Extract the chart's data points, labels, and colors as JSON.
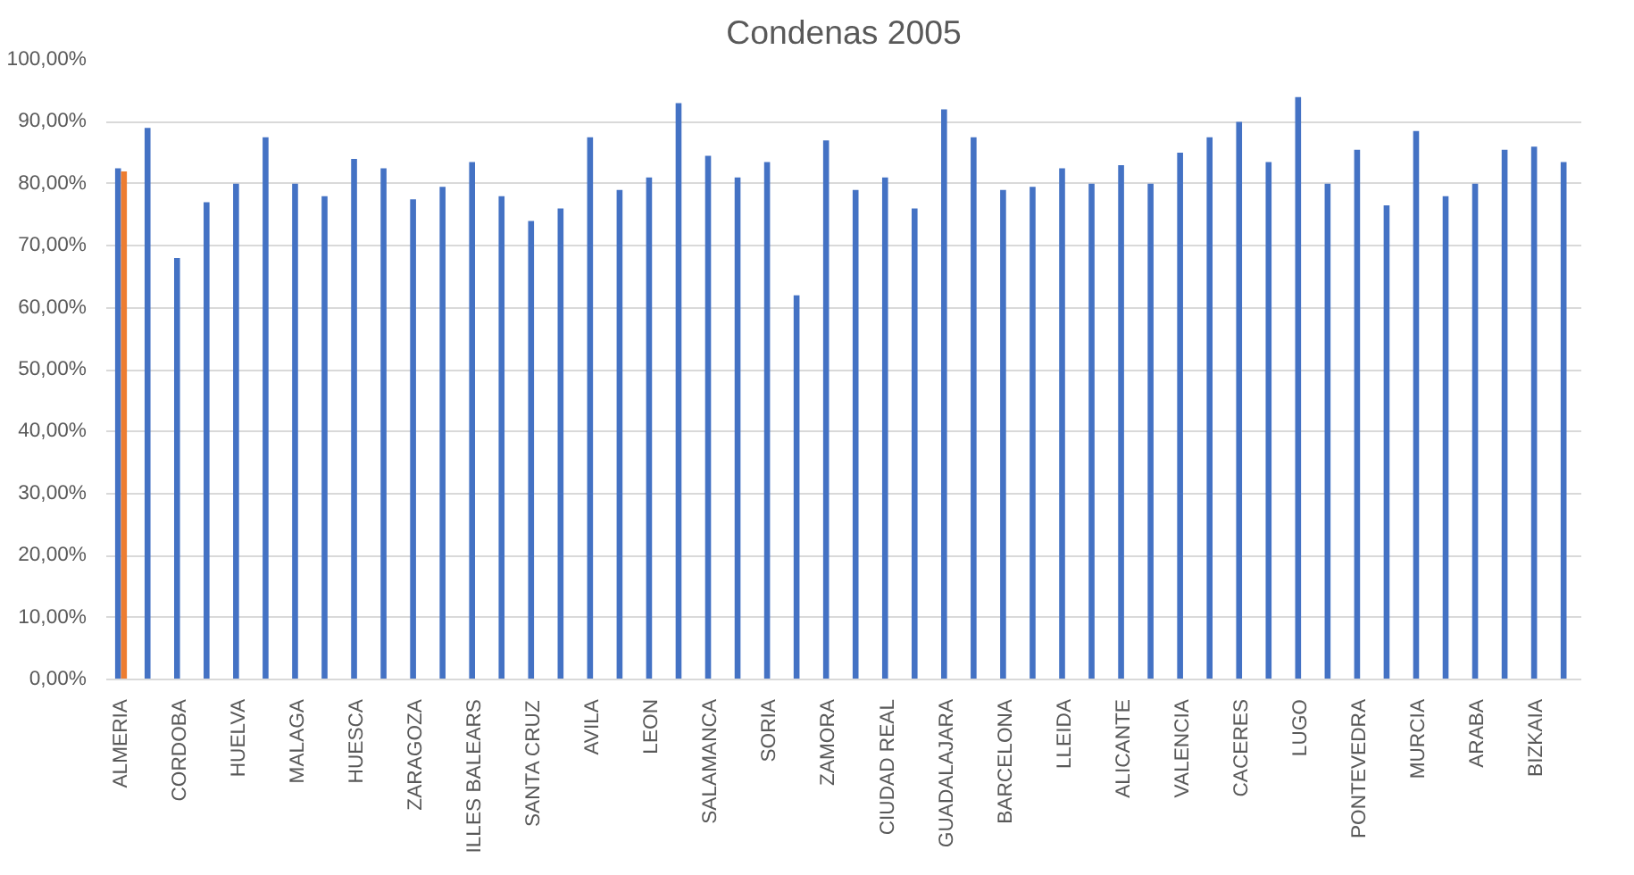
{
  "chart_data": {
    "type": "bar",
    "title": "Condenas 2005",
    "categories": [
      "ALMERIA",
      null,
      "CORDOBA",
      null,
      "HUELVA",
      null,
      "MALAGA",
      null,
      "HUESCA",
      null,
      "ZARAGOZA",
      null,
      "ILLES BALEARS",
      null,
      "SANTA CRUZ",
      null,
      "AVILA",
      null,
      "LEON",
      null,
      "SALAMANCA",
      null,
      "SORIA",
      null,
      "ZAMORA",
      null,
      "CIUDAD REAL",
      null,
      "GUADALAJARA",
      null,
      "BARCELONA",
      null,
      "LLEIDA",
      null,
      "ALICANTE",
      null,
      "VALENCIA",
      null,
      "CACERES",
      null,
      "LUGO",
      null,
      "PONTEVEDRA",
      null,
      "MURCIA",
      null,
      "ARABA",
      null,
      "BIZKAIA",
      null
    ],
    "series": [
      {
        "color": "#4472c4",
        "values": [
          82.5,
          89,
          68,
          77,
          80,
          87.5,
          80,
          78,
          84,
          82.5,
          77.5,
          79.5,
          83.5,
          78,
          74,
          76,
          87.5,
          79,
          81,
          93,
          84.5,
          81,
          83.5,
          62,
          87,
          79,
          81,
          76,
          92,
          87.5,
          79,
          79.5,
          82.5,
          80,
          83,
          80,
          85,
          87.5,
          90,
          83.5,
          94,
          80,
          85.5,
          76.5,
          88.5,
          78,
          80,
          85.5,
          86,
          83.5
        ]
      },
      {
        "color": "#ed7d31",
        "values": [
          82,
          null,
          null,
          null,
          null,
          null,
          null,
          null,
          null,
          null,
          null,
          null,
          null,
          null,
          null,
          null,
          null,
          null,
          null,
          null,
          null,
          null,
          null,
          null,
          null,
          null,
          null,
          null,
          null,
          null,
          null,
          null,
          null,
          null,
          null,
          null,
          null,
          null,
          null,
          null,
          null,
          null,
          null,
          null,
          null,
          null,
          null,
          null,
          null,
          null
        ]
      }
    ],
    "ylim": [
      0,
      100
    ],
    "yticks": [
      {
        "value": 0,
        "label": "0,00%"
      },
      {
        "value": 10,
        "label": "10,00%"
      },
      {
        "value": 20,
        "label": "20,00%"
      },
      {
        "value": 30,
        "label": "30,00%"
      },
      {
        "value": 40,
        "label": "40,00%"
      },
      {
        "value": 50,
        "label": "50,00%"
      },
      {
        "value": 60,
        "label": "60,00%"
      },
      {
        "value": 70,
        "label": "70,00%"
      },
      {
        "value": 80,
        "label": "80,00%"
      },
      {
        "value": 90,
        "label": "90,00%"
      },
      {
        "value": 100,
        "label": "100,00%"
      }
    ],
    "grid": "y"
  }
}
